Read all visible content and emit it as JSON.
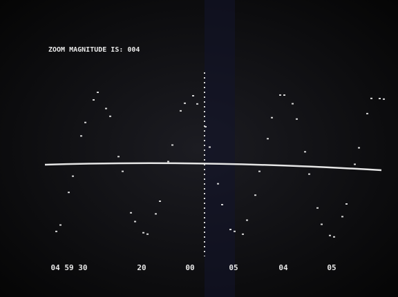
{
  "screen": {
    "title": "ZOOM MAGNITUDE IS: 004",
    "time_labels": [
      "04 59 30",
      "20",
      "00",
      "05",
      "04",
      "05"
    ]
  }
}
